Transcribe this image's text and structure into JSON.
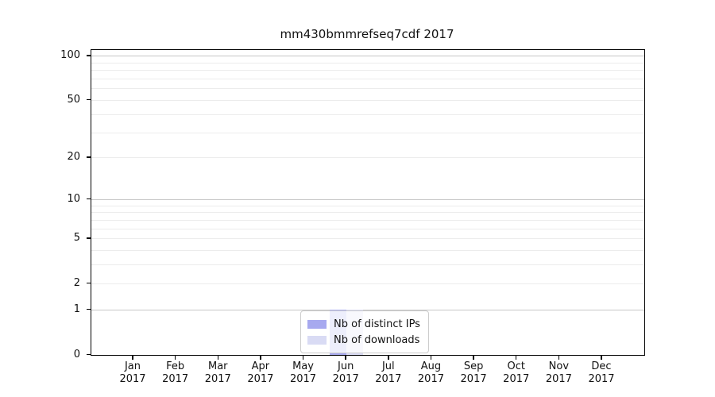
{
  "figure": {
    "background": "#ffffff"
  },
  "chart_data": {
    "type": "bar",
    "title": "mm430bmmrefseq7cdf 2017",
    "x_year": "2017",
    "categories": [
      "Jan",
      "Feb",
      "Mar",
      "Apr",
      "May",
      "Jun",
      "Jul",
      "Aug",
      "Sep",
      "Oct",
      "Nov",
      "Dec"
    ],
    "series": [
      {
        "name": "Nb of distinct IPs",
        "color": "#a7a9ef",
        "values": [
          0,
          0,
          0,
          0,
          0,
          1,
          0,
          0,
          0,
          0,
          0,
          0
        ]
      },
      {
        "name": "Nb of downloads",
        "color": "#d9dbf4",
        "values": [
          0,
          0,
          0,
          0,
          0,
          1,
          0,
          0,
          0,
          0,
          0,
          0
        ]
      }
    ],
    "y_ticks": [
      0,
      1,
      2,
      5,
      10,
      20,
      50,
      100
    ],
    "y_scale": "log10(1+y)",
    "ylim": [
      0,
      110
    ],
    "grid": {
      "major_values": [
        1,
        10,
        100
      ],
      "minor_values": [
        2,
        3,
        4,
        5,
        6,
        7,
        8,
        9,
        20,
        30,
        40,
        50,
        60,
        70,
        80,
        90
      ],
      "major_color": "#c6c6c6",
      "minor_color": "#ececec"
    },
    "legend": {
      "position": "lower center"
    }
  }
}
